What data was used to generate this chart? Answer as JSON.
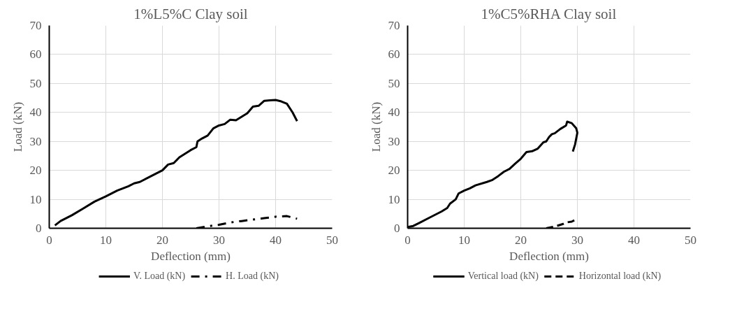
{
  "chart_data": [
    {
      "type": "line",
      "title": "1%L5%C Clay soil",
      "xlabel": "Deflection (mm)",
      "ylabel": "Load (kN)",
      "xlim": [
        0,
        50
      ],
      "ylim": [
        0,
        70
      ],
      "xticks": [
        0,
        10,
        20,
        30,
        40,
        50
      ],
      "yticks": [
        0,
        10,
        20,
        30,
        40,
        50,
        60,
        70
      ],
      "grid": true,
      "legend": "bottom",
      "marker": "none",
      "series": [
        {
          "name": "V. Load (kN)",
          "color": "#000000",
          "line_style": "solid",
          "x": [
            1,
            2,
            4,
            6,
            8,
            10,
            12,
            14,
            15,
            16,
            18,
            20,
            21,
            22,
            23,
            25,
            26,
            26.2,
            27,
            28,
            29,
            30,
            31,
            32,
            33,
            34,
            35,
            36,
            37,
            38,
            39,
            40,
            41,
            42,
            43,
            43.8
          ],
          "values": [
            1,
            2.5,
            4.5,
            6.8,
            9.2,
            11,
            13,
            14.5,
            15.5,
            16,
            18,
            20,
            22,
            22.5,
            24.5,
            27,
            28,
            30,
            31,
            32,
            34.5,
            35.5,
            36,
            37.5,
            37.3,
            38.5,
            39.7,
            42,
            42.3,
            44,
            44.2,
            44.3,
            43.8,
            43,
            40,
            37
          ]
        },
        {
          "name": "H. Load (kN)",
          "color": "#000000",
          "line_style": "dashdot",
          "x": [
            26,
            28,
            30,
            32,
            34,
            36,
            38,
            40,
            42,
            43.8
          ],
          "values": [
            0,
            0.7,
            1.2,
            2,
            2.5,
            3,
            3.5,
            4,
            4.2,
            3.3
          ]
        }
      ]
    },
    {
      "type": "line",
      "title": "1%C5%RHA Clay soil",
      "xlabel": "Deflection (mm)",
      "ylabel": "Load (kN)",
      "xlim": [
        0,
        50
      ],
      "ylim": [
        0,
        70
      ],
      "xticks": [
        0,
        10,
        20,
        30,
        40,
        50
      ],
      "yticks": [
        0,
        10,
        20,
        30,
        40,
        50,
        60,
        70
      ],
      "grid": true,
      "legend": "bottom",
      "marker": "none",
      "series": [
        {
          "name": "Vertical load (kN)",
          "color": "#000000",
          "line_style": "solid",
          "x": [
            0,
            1,
            2,
            4,
            6,
            7,
            7.5,
            8.5,
            9,
            10,
            11,
            12,
            14,
            15,
            16,
            17,
            18,
            19,
            20,
            21,
            22,
            23,
            24,
            24.5,
            25,
            25.5,
            26,
            27,
            28,
            28.2,
            29,
            29.8,
            30,
            29.6,
            29.2
          ],
          "values": [
            0.4,
            0.8,
            1.8,
            3.8,
            5.8,
            7,
            8.5,
            10,
            12,
            13,
            13.8,
            14.8,
            16,
            16.7,
            18,
            19.5,
            20.5,
            22.3,
            24,
            26.3,
            26.6,
            27.5,
            29.7,
            30,
            31.5,
            32.5,
            32.8,
            34.3,
            35.5,
            36.8,
            36.3,
            34.5,
            33,
            29,
            26.5
          ]
        },
        {
          "name": "Horizontal load (kN)",
          "color": "#000000",
          "line_style": "dashed",
          "x": [
            24.5,
            26,
            27.5,
            28,
            29,
            29.7
          ],
          "values": [
            0,
            0.6,
            1.5,
            2,
            2.3,
            3
          ]
        }
      ]
    }
  ]
}
